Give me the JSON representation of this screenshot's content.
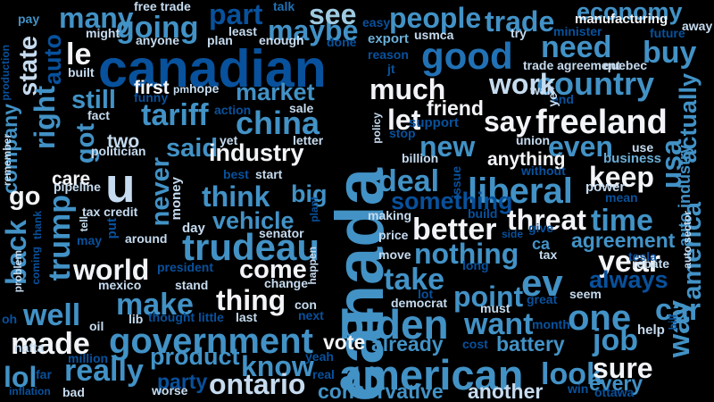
{
  "palette": {
    "background": "#000000",
    "white": "#f2f4f8",
    "pale": "#c6dbef",
    "light": "#9ecae1",
    "mid": "#6baed6",
    "blue": "#4292c6",
    "deep": "#2171b5",
    "dark": "#08519c",
    "navy": "#08306b"
  },
  "words": [
    {
      "text": "canada",
      "tone": "blue",
      "weight": 1.0,
      "vertical": true
    },
    {
      "text": "canadian",
      "tone": "dark",
      "weight": 0.78
    },
    {
      "text": "american",
      "tone": "blue",
      "weight": 0.62
    },
    {
      "text": "government",
      "tone": "blue",
      "weight": 0.53
    },
    {
      "text": "biden",
      "tone": "blue",
      "weight": 0.6
    },
    {
      "text": "trudeau",
      "tone": "blue",
      "weight": 0.55
    },
    {
      "text": "liberal",
      "tone": "blue",
      "weight": 0.53
    },
    {
      "text": "u",
      "tone": "pale",
      "weight": 0.72
    },
    {
      "text": "freeland",
      "tone": "white",
      "weight": 0.5
    },
    {
      "text": "country",
      "tone": "blue",
      "weight": 0.48
    },
    {
      "text": "good",
      "tone": "deep",
      "weight": 0.55
    },
    {
      "text": "much",
      "tone": "white",
      "weight": 0.42
    },
    {
      "text": "people",
      "tone": "blue",
      "weight": 0.42
    },
    {
      "text": "trade",
      "tone": "blue",
      "weight": 0.42
    },
    {
      "text": "economy",
      "tone": "blue",
      "weight": 0.36
    },
    {
      "text": "need",
      "tone": "blue",
      "weight": 0.45
    },
    {
      "text": "buy",
      "tone": "blue",
      "weight": 0.45
    },
    {
      "text": "going",
      "tone": "blue",
      "weight": 0.45
    },
    {
      "text": "maybe",
      "tone": "blue",
      "weight": 0.42
    },
    {
      "text": "part",
      "tone": "dark",
      "weight": 0.42
    },
    {
      "text": "see",
      "tone": "light",
      "weight": 0.42
    },
    {
      "text": "many",
      "tone": "blue",
      "weight": 0.42
    },
    {
      "text": "le",
      "tone": "white",
      "weight": 0.45
    },
    {
      "text": "state",
      "tone": "pale",
      "weight": 0.38,
      "vertical": true
    },
    {
      "text": "auto",
      "tone": "dark",
      "weight": 0.36,
      "vertical": true
    },
    {
      "text": "right",
      "tone": "blue",
      "weight": 0.42,
      "vertical": true
    },
    {
      "text": "company",
      "tone": "blue",
      "weight": 0.3,
      "vertical": true
    },
    {
      "text": "still",
      "tone": "blue",
      "weight": 0.38
    },
    {
      "text": "tariff",
      "tone": "blue",
      "weight": 0.45
    },
    {
      "text": "market",
      "tone": "blue",
      "weight": 0.36
    },
    {
      "text": "first",
      "tone": "white",
      "weight": 0.27
    },
    {
      "text": "china",
      "tone": "blue",
      "weight": 0.48
    },
    {
      "text": "work",
      "tone": "pale",
      "weight": 0.42
    },
    {
      "text": "let",
      "tone": "white",
      "weight": 0.42
    },
    {
      "text": "say",
      "tone": "white",
      "weight": 0.42
    },
    {
      "text": "friend",
      "tone": "white",
      "weight": 0.3
    },
    {
      "text": "new",
      "tone": "blue",
      "weight": 0.42
    },
    {
      "text": "even",
      "tone": "blue",
      "weight": 0.42
    },
    {
      "text": "actually",
      "tone": "blue",
      "weight": 0.36,
      "vertical": true
    },
    {
      "text": "got",
      "tone": "blue",
      "weight": 0.38,
      "vertical": true
    },
    {
      "text": "two",
      "tone": "pale",
      "weight": 0.27
    },
    {
      "text": "said",
      "tone": "blue",
      "weight": 0.38
    },
    {
      "text": "industry",
      "tone": "white",
      "weight": 0.36
    },
    {
      "text": "anything",
      "tone": "white",
      "weight": 0.27
    },
    {
      "text": "keep",
      "tone": "white",
      "weight": 0.42
    },
    {
      "text": "usa",
      "tone": "blue",
      "weight": 0.42,
      "vertical": true
    },
    {
      "text": "go",
      "tone": "white",
      "weight": 0.38
    },
    {
      "text": "care",
      "tone": "white",
      "weight": 0.27
    },
    {
      "text": "never",
      "tone": "blue",
      "weight": 0.38,
      "vertical": true
    },
    {
      "text": "think",
      "tone": "blue",
      "weight": 0.42
    },
    {
      "text": "big",
      "tone": "blue",
      "weight": 0.36
    },
    {
      "text": "deal",
      "tone": "blue",
      "weight": 0.45
    },
    {
      "text": "something",
      "tone": "dark",
      "weight": 0.36
    },
    {
      "text": "threat",
      "tone": "white",
      "weight": 0.42
    },
    {
      "text": "time",
      "tone": "blue",
      "weight": 0.45
    },
    {
      "text": "back",
      "tone": "blue",
      "weight": 0.42,
      "vertical": true
    },
    {
      "text": "trump",
      "tone": "blue",
      "weight": 0.45,
      "vertical": true
    },
    {
      "text": "vehicle",
      "tone": "blue",
      "weight": 0.36
    },
    {
      "text": "better",
      "tone": "white",
      "weight": 0.45
    },
    {
      "text": "america",
      "tone": "blue",
      "weight": 0.38,
      "vertical": true
    },
    {
      "text": "world",
      "tone": "white",
      "weight": 0.42
    },
    {
      "text": "come",
      "tone": "white",
      "weight": 0.38
    },
    {
      "text": "nothing",
      "tone": "blue",
      "weight": 0.42
    },
    {
      "text": "agreement",
      "tone": "blue",
      "weight": 0.3
    },
    {
      "text": "year",
      "tone": "white",
      "weight": 0.45
    },
    {
      "text": "make",
      "tone": "blue",
      "weight": 0.45
    },
    {
      "text": "take",
      "tone": "blue",
      "weight": 0.45
    },
    {
      "text": "ev",
      "tone": "blue",
      "weight": 0.55
    },
    {
      "text": "always",
      "tone": "dark",
      "weight": 0.36
    },
    {
      "text": "thing",
      "tone": "white",
      "weight": 0.42
    },
    {
      "text": "point",
      "tone": "blue",
      "weight": 0.42
    },
    {
      "text": "one",
      "tone": "blue",
      "weight": 0.53
    },
    {
      "text": "car",
      "tone": "blue",
      "weight": 0.45
    },
    {
      "text": "well",
      "tone": "blue",
      "weight": 0.45
    },
    {
      "text": "made",
      "tone": "white",
      "weight": 0.45
    },
    {
      "text": "want",
      "tone": "blue",
      "weight": 0.45
    },
    {
      "text": "job",
      "tone": "blue",
      "weight": 0.45
    },
    {
      "text": "way",
      "tone": "blue",
      "weight": 0.45,
      "vertical": true
    },
    {
      "text": "vote",
      "tone": "white",
      "weight": 0.3
    },
    {
      "text": "already",
      "tone": "blue",
      "weight": 0.3
    },
    {
      "text": "battery",
      "tone": "blue",
      "weight": 0.3
    },
    {
      "text": "really",
      "tone": "blue",
      "weight": 0.45
    },
    {
      "text": "product",
      "tone": "blue",
      "weight": 0.36
    },
    {
      "text": "know",
      "tone": "blue",
      "weight": 0.42
    },
    {
      "text": "look",
      "tone": "blue",
      "weight": 0.45
    },
    {
      "text": "sure",
      "tone": "white",
      "weight": 0.42
    },
    {
      "text": "lol",
      "tone": "blue",
      "weight": 0.42
    },
    {
      "text": "party",
      "tone": "dark",
      "weight": 0.3
    },
    {
      "text": "ontario",
      "tone": "pale",
      "weight": 0.42
    },
    {
      "text": "conservative",
      "tone": "blue",
      "weight": 0.3
    },
    {
      "text": "another",
      "tone": "pale",
      "weight": 0.3
    },
    {
      "text": "every",
      "tone": "blue",
      "weight": 0.3
    },
    {
      "text": "pay",
      "tone": "blue",
      "weight": 0.18
    },
    {
      "text": "might",
      "tone": "pale",
      "weight": 0.18
    },
    {
      "text": "free trade",
      "tone": "pale",
      "weight": 0.18
    },
    {
      "text": "anyone",
      "tone": "pale",
      "weight": 0.18
    },
    {
      "text": "plan",
      "tone": "pale",
      "weight": 0.18
    },
    {
      "text": "least",
      "tone": "pale",
      "weight": 0.18
    },
    {
      "text": "enough",
      "tone": "pale",
      "weight": 0.18
    },
    {
      "text": "talk",
      "tone": "deep",
      "weight": 0.18
    },
    {
      "text": "easy",
      "tone": "dark",
      "weight": 0.18
    },
    {
      "text": "done",
      "tone": "dark",
      "weight": 0.18
    },
    {
      "text": "export",
      "tone": "mid",
      "weight": 0.2
    },
    {
      "text": "usmca",
      "tone": "pale",
      "weight": 0.18
    },
    {
      "text": "try",
      "tone": "pale",
      "weight": 0.18
    },
    {
      "text": "minister",
      "tone": "dark",
      "weight": 0.18
    },
    {
      "text": "manufacturing",
      "tone": "white",
      "weight": 0.2
    },
    {
      "text": "away",
      "tone": "pale",
      "weight": 0.18
    },
    {
      "text": "future",
      "tone": "dark",
      "weight": 0.18
    },
    {
      "text": "production",
      "tone": "dark",
      "weight": 0.16,
      "vertical": true
    },
    {
      "text": "built",
      "tone": "pale",
      "weight": 0.18
    },
    {
      "text": "reason",
      "tone": "dark",
      "weight": 0.18
    },
    {
      "text": "jt",
      "tone": "dark",
      "weight": 0.18
    },
    {
      "text": "trade agreement",
      "tone": "pale",
      "weight": 0.18
    },
    {
      "text": "quebec",
      "tone": "pale",
      "weight": 0.18
    },
    {
      "text": "pm",
      "tone": "pale",
      "weight": 0.16
    },
    {
      "text": "hope",
      "tone": "pale",
      "weight": 0.18
    },
    {
      "text": "funny",
      "tone": "dark",
      "weight": 0.18
    },
    {
      "text": "action",
      "tone": "dark",
      "weight": 0.18
    },
    {
      "text": "wait",
      "tone": "pale",
      "weight": 0.18
    },
    {
      "text": "sale",
      "tone": "pale",
      "weight": 0.18
    },
    {
      "text": "end",
      "tone": "dark",
      "weight": 0.18
    },
    {
      "text": "ye",
      "tone": "pale",
      "weight": 0.18,
      "vertical": true
    },
    {
      "text": "business",
      "tone": "mid",
      "weight": 0.2
    },
    {
      "text": "auto industry",
      "tone": "blue",
      "weight": 0.24,
      "vertical": true
    },
    {
      "text": "fact",
      "tone": "pale",
      "weight": 0.18
    },
    {
      "text": "remember",
      "tone": "pale",
      "weight": 0.16,
      "vertical": true
    },
    {
      "text": "politician",
      "tone": "pale",
      "weight": 0.18
    },
    {
      "text": "yet",
      "tone": "pale",
      "weight": 0.18
    },
    {
      "text": "letter",
      "tone": "pale",
      "weight": 0.18
    },
    {
      "text": "support",
      "tone": "dark",
      "weight": 0.2
    },
    {
      "text": "stop",
      "tone": "dark",
      "weight": 0.18
    },
    {
      "text": "policy",
      "tone": "pale",
      "weight": 0.16,
      "vertical": true
    },
    {
      "text": "union",
      "tone": "pale",
      "weight": 0.18
    },
    {
      "text": "use",
      "tone": "pale",
      "weight": 0.18
    },
    {
      "text": "billion",
      "tone": "pale",
      "weight": 0.18
    },
    {
      "text": "best",
      "tone": "dark",
      "weight": 0.18
    },
    {
      "text": "start",
      "tone": "pale",
      "weight": 0.18
    },
    {
      "text": "without",
      "tone": "dark",
      "weight": 0.18
    },
    {
      "text": "pipeline",
      "tone": "pale",
      "weight": 0.18
    },
    {
      "text": "money",
      "tone": "pale",
      "weight": 0.2,
      "vertical": true
    },
    {
      "text": "issue",
      "tone": "dark",
      "weight": 0.18,
      "vertical": true
    },
    {
      "text": "power",
      "tone": "pale",
      "weight": 0.2
    },
    {
      "text": "mean",
      "tone": "dark",
      "weight": 0.18
    },
    {
      "text": "thank",
      "tone": "dark",
      "weight": 0.16,
      "vertical": true
    },
    {
      "text": "tax credit",
      "tone": "pale",
      "weight": 0.18
    },
    {
      "text": "plant",
      "tone": "dark",
      "weight": 0.16,
      "vertical": true
    },
    {
      "text": "build",
      "tone": "dark",
      "weight": 0.18
    },
    {
      "text": "making",
      "tone": "pale",
      "weight": 0.18
    },
    {
      "text": "tell",
      "tone": "pale",
      "weight": 0.16,
      "vertical": true
    },
    {
      "text": "day",
      "tone": "pale",
      "weight": 0.2
    },
    {
      "text": "senator",
      "tone": "pale",
      "weight": 0.18
    },
    {
      "text": "give",
      "tone": "dark",
      "weight": 0.18
    },
    {
      "text": "may",
      "tone": "dark",
      "weight": 0.18
    },
    {
      "text": "put",
      "tone": "dark",
      "weight": 0.2,
      "vertical": true
    },
    {
      "text": "around",
      "tone": "pale",
      "weight": 0.18
    },
    {
      "text": "price",
      "tone": "pale",
      "weight": 0.18
    },
    {
      "text": "side",
      "tone": "dark",
      "weight": 0.16
    },
    {
      "text": "ca",
      "tone": "blue",
      "weight": 0.24
    },
    {
      "text": "coming",
      "tone": "dark",
      "weight": 0.16,
      "vertical": true
    },
    {
      "text": "move",
      "tone": "pale",
      "weight": 0.18
    },
    {
      "text": "tax",
      "tone": "pale",
      "weight": 0.18
    },
    {
      "text": "tesla",
      "tone": "dark",
      "weight": 0.18
    },
    {
      "text": "auto sector",
      "tone": "pale",
      "weight": 0.16,
      "vertical": true
    },
    {
      "text": "long",
      "tone": "dark",
      "weight": 0.18
    },
    {
      "text": "rebate",
      "tone": "pale",
      "weight": 0.18
    },
    {
      "text": "president",
      "tone": "dark",
      "weight": 0.18
    },
    {
      "text": "problem",
      "tone": "pale",
      "weight": 0.16,
      "vertical": true
    },
    {
      "text": "mexico",
      "tone": "pale",
      "weight": 0.18
    },
    {
      "text": "stand",
      "tone": "pale",
      "weight": 0.18
    },
    {
      "text": "change",
      "tone": "pale",
      "weight": 0.18
    },
    {
      "text": "happen",
      "tone": "pale",
      "weight": 0.16,
      "vertical": true
    },
    {
      "text": "lot",
      "tone": "dark",
      "weight": 0.18
    },
    {
      "text": "must",
      "tone": "pale",
      "weight": 0.18
    },
    {
      "text": "great",
      "tone": "dark",
      "weight": 0.18
    },
    {
      "text": "seem",
      "tone": "pale",
      "weight": 0.18
    },
    {
      "text": "con",
      "tone": "pale",
      "weight": 0.18
    },
    {
      "text": "democrat",
      "tone": "pale",
      "weight": 0.18
    },
    {
      "text": "oh",
      "tone": "dark",
      "weight": 0.18
    },
    {
      "text": "lib",
      "tone": "pale",
      "weight": 0.18
    },
    {
      "text": "thought",
      "tone": "dark",
      "weight": 0.18
    },
    {
      "text": "little",
      "tone": "dark",
      "weight": 0.18
    },
    {
      "text": "last",
      "tone": "pale",
      "weight": 0.18
    },
    {
      "text": "next",
      "tone": "dark",
      "weight": 0.18
    },
    {
      "text": "oil",
      "tone": "pale",
      "weight": 0.18
    },
    {
      "text": "month",
      "tone": "dark",
      "weight": 0.18
    },
    {
      "text": "bill",
      "tone": "dark",
      "weight": 0.16,
      "vertical": true
    },
    {
      "text": "help",
      "tone": "pale",
      "weight": 0.2
    },
    {
      "text": "cost",
      "tone": "dark",
      "weight": 0.18
    },
    {
      "text": "nafta",
      "tone": "pale",
      "weight": 0.18
    },
    {
      "text": "million",
      "tone": "dark",
      "weight": 0.18
    },
    {
      "text": "yeah",
      "tone": "dark",
      "weight": 0.18
    },
    {
      "text": "real",
      "tone": "dark",
      "weight": 0.18
    },
    {
      "text": "far",
      "tone": "dark",
      "weight": 0.18
    },
    {
      "text": "inflation",
      "tone": "dark",
      "weight": 0.16
    },
    {
      "text": "bad",
      "tone": "pale",
      "weight": 0.18
    },
    {
      "text": "worse",
      "tone": "pale",
      "weight": 0.18
    },
    {
      "text": "win",
      "tone": "dark",
      "weight": 0.18
    },
    {
      "text": "ottawa",
      "tone": "dark",
      "weight": 0.18
    }
  ]
}
